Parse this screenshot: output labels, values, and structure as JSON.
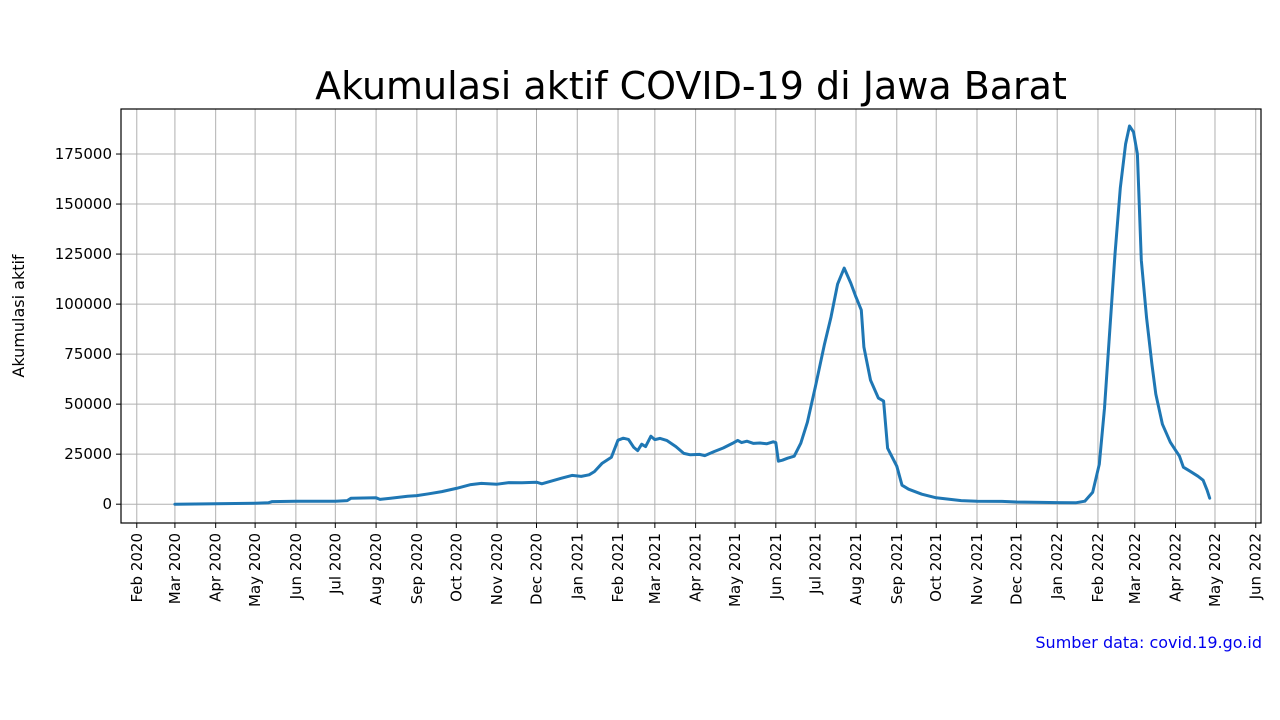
{
  "chart_data": {
    "type": "line",
    "title": "Akumulasi aktif COVID-19 di Jawa Barat",
    "ylabel": "Akumulasi aktif",
    "xlabel": "",
    "source_text": "Sumber data: covid.19.go.id",
    "x_ticks": [
      {
        "date": "2020-02-01",
        "label": "Feb 2020"
      },
      {
        "date": "2020-03-01",
        "label": "Mar 2020"
      },
      {
        "date": "2020-04-01",
        "label": "Apr 2020"
      },
      {
        "date": "2020-05-01",
        "label": "May 2020"
      },
      {
        "date": "2020-06-01",
        "label": "Jun 2020"
      },
      {
        "date": "2020-07-01",
        "label": "Jul 2020"
      },
      {
        "date": "2020-08-01",
        "label": "Aug 2020"
      },
      {
        "date": "2020-09-01",
        "label": "Sep 2020"
      },
      {
        "date": "2020-10-01",
        "label": "Oct 2020"
      },
      {
        "date": "2020-11-01",
        "label": "Nov 2020"
      },
      {
        "date": "2020-12-01",
        "label": "Dec 2020"
      },
      {
        "date": "2021-01-01",
        "label": "Jan 2021"
      },
      {
        "date": "2021-02-01",
        "label": "Feb 2021"
      },
      {
        "date": "2021-03-01",
        "label": "Mar 2021"
      },
      {
        "date": "2021-04-01",
        "label": "Apr 2021"
      },
      {
        "date": "2021-05-01",
        "label": "May 2021"
      },
      {
        "date": "2021-06-01",
        "label": "Jun 2021"
      },
      {
        "date": "2021-07-01",
        "label": "Jul 2021"
      },
      {
        "date": "2021-08-01",
        "label": "Aug 2021"
      },
      {
        "date": "2021-09-01",
        "label": "Sep 2021"
      },
      {
        "date": "2021-10-01",
        "label": "Oct 2021"
      },
      {
        "date": "2021-11-01",
        "label": "Nov 2021"
      },
      {
        "date": "2021-12-01",
        "label": "Dec 2021"
      },
      {
        "date": "2022-01-01",
        "label": "Jan 2022"
      },
      {
        "date": "2022-02-01",
        "label": "Feb 2022"
      },
      {
        "date": "2022-03-01",
        "label": "Mar 2022"
      },
      {
        "date": "2022-04-01",
        "label": "Apr 2022"
      },
      {
        "date": "2022-05-01",
        "label": "May 2022"
      },
      {
        "date": "2022-06-01",
        "label": "Jun 2022"
      }
    ],
    "y_ticks": [
      0,
      25000,
      50000,
      75000,
      100000,
      125000,
      150000,
      175000
    ],
    "y_tick_labels": [
      "0",
      "25000",
      "50000",
      "75000",
      "100000",
      "125000",
      "150000",
      "175000"
    ],
    "xlim": [
      "2020-01-20",
      "2022-06-05"
    ],
    "ylim": [
      -9400,
      197500
    ],
    "grid": true,
    "colors": {
      "line": "#1f77b4",
      "source": "#0000ee",
      "grid": "#b0b0b0"
    },
    "series": [
      {
        "points": [
          [
            "2020-03-01",
            0
          ],
          [
            "2020-04-01",
            200
          ],
          [
            "2020-05-01",
            500
          ],
          [
            "2020-05-11",
            700
          ],
          [
            "2020-05-14",
            1300
          ],
          [
            "2020-06-01",
            1500
          ],
          [
            "2020-07-01",
            1500
          ],
          [
            "2020-07-10",
            1800
          ],
          [
            "2020-07-13",
            3000
          ],
          [
            "2020-08-01",
            3200
          ],
          [
            "2020-08-04",
            2400
          ],
          [
            "2020-08-12",
            3000
          ],
          [
            "2020-08-25",
            4000
          ],
          [
            "2020-09-01",
            4300
          ],
          [
            "2020-09-10",
            5200
          ],
          [
            "2020-09-20",
            6300
          ],
          [
            "2020-10-01",
            7900
          ],
          [
            "2020-10-12",
            9800
          ],
          [
            "2020-10-20",
            10400
          ],
          [
            "2020-11-01",
            10000
          ],
          [
            "2020-11-10",
            10800
          ],
          [
            "2020-11-20",
            10700
          ],
          [
            "2020-12-01",
            11000
          ],
          [
            "2020-12-05",
            10200
          ],
          [
            "2020-12-12",
            11500
          ],
          [
            "2020-12-20",
            13000
          ],
          [
            "2020-12-28",
            14400
          ],
          [
            "2021-01-04",
            13900
          ],
          [
            "2021-01-10",
            14700
          ],
          [
            "2021-01-14",
            16300
          ],
          [
            "2021-01-20",
            20500
          ],
          [
            "2021-01-27",
            23500
          ],
          [
            "2021-02-01",
            32000
          ],
          [
            "2021-02-05",
            33000
          ],
          [
            "2021-02-09",
            32400
          ],
          [
            "2021-02-13",
            28400
          ],
          [
            "2021-02-16",
            26800
          ],
          [
            "2021-02-19",
            30000
          ],
          [
            "2021-02-22",
            28800
          ],
          [
            "2021-02-26",
            34000
          ],
          [
            "2021-03-01",
            32300
          ],
          [
            "2021-03-05",
            32900
          ],
          [
            "2021-03-10",
            31900
          ],
          [
            "2021-03-17",
            28800
          ],
          [
            "2021-03-23",
            25400
          ],
          [
            "2021-03-28",
            24700
          ],
          [
            "2021-04-04",
            24900
          ],
          [
            "2021-04-08",
            24300
          ],
          [
            "2021-04-15",
            26300
          ],
          [
            "2021-04-22",
            28100
          ],
          [
            "2021-04-29",
            30400
          ],
          [
            "2021-05-03",
            31900
          ],
          [
            "2021-05-06",
            30800
          ],
          [
            "2021-05-10",
            31500
          ],
          [
            "2021-05-15",
            30400
          ],
          [
            "2021-05-20",
            30600
          ],
          [
            "2021-05-25",
            30200
          ],
          [
            "2021-05-30",
            31200
          ],
          [
            "2021-06-01",
            30800
          ],
          [
            "2021-06-03",
            21500
          ],
          [
            "2021-06-06",
            22000
          ],
          [
            "2021-06-10",
            23000
          ],
          [
            "2021-06-15",
            24000
          ],
          [
            "2021-06-20",
            30500
          ],
          [
            "2021-06-25",
            41000
          ],
          [
            "2021-07-01",
            58500
          ],
          [
            "2021-07-08",
            80000
          ],
          [
            "2021-07-13",
            93500
          ],
          [
            "2021-07-18",
            110000
          ],
          [
            "2021-07-23",
            118000
          ],
          [
            "2021-07-28",
            110500
          ],
          [
            "2021-08-01",
            103500
          ],
          [
            "2021-08-05",
            97000
          ],
          [
            "2021-08-07",
            78500
          ],
          [
            "2021-08-12",
            62000
          ],
          [
            "2021-08-18",
            53000
          ],
          [
            "2021-08-22",
            51500
          ],
          [
            "2021-08-25",
            28000
          ],
          [
            "2021-09-01",
            19000
          ],
          [
            "2021-09-05",
            9500
          ],
          [
            "2021-09-10",
            7500
          ],
          [
            "2021-09-20",
            5000
          ],
          [
            "2021-10-01",
            3200
          ],
          [
            "2021-10-20",
            1800
          ],
          [
            "2021-11-01",
            1500
          ],
          [
            "2021-11-20",
            1400
          ],
          [
            "2021-12-01",
            1100
          ],
          [
            "2021-12-20",
            900
          ],
          [
            "2022-01-01",
            800
          ],
          [
            "2022-01-15",
            700
          ],
          [
            "2022-01-22",
            1500
          ],
          [
            "2022-01-28",
            6000
          ],
          [
            "2022-02-02",
            20000
          ],
          [
            "2022-02-06",
            48000
          ],
          [
            "2022-02-10",
            87000
          ],
          [
            "2022-02-14",
            125000
          ],
          [
            "2022-02-18",
            158000
          ],
          [
            "2022-02-22",
            180000
          ],
          [
            "2022-02-25",
            189000
          ],
          [
            "2022-02-28",
            186000
          ],
          [
            "2022-03-03",
            175000
          ],
          [
            "2022-03-06",
            122000
          ],
          [
            "2022-03-10",
            93000
          ],
          [
            "2022-03-14",
            70000
          ],
          [
            "2022-03-17",
            55000
          ],
          [
            "2022-03-22",
            40000
          ],
          [
            "2022-03-28",
            31000
          ],
          [
            "2022-04-01",
            27000
          ],
          [
            "2022-04-04",
            24000
          ],
          [
            "2022-04-07",
            18500
          ],
          [
            "2022-04-12",
            16500
          ],
          [
            "2022-04-18",
            14000
          ],
          [
            "2022-04-22",
            12000
          ],
          [
            "2022-04-25",
            7000
          ],
          [
            "2022-04-27",
            3000
          ]
        ]
      }
    ]
  }
}
